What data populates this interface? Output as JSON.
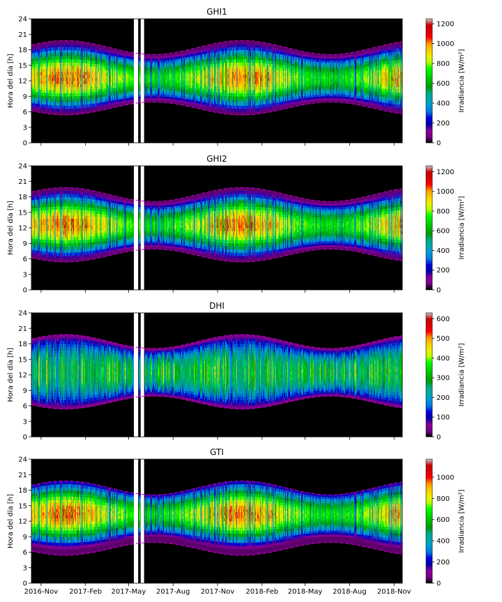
{
  "chart_data": {
    "type": "heatmap",
    "x_ticks": [
      "2016-Nov",
      "2017-Feb",
      "2017-May",
      "2017-Aug",
      "2017-Nov",
      "2018-Feb",
      "2018-May",
      "2018-Aug",
      "2018-Nov"
    ],
    "x_range": [
      "2016-10-12",
      "2018-11-18"
    ],
    "ylabel": "Hora del día [h]",
    "ylim": [
      0,
      24
    ],
    "y_ticks": [
      0,
      3,
      6,
      9,
      12,
      15,
      18,
      21,
      24
    ],
    "colormap": "nipy_spectral",
    "colorbar_label": "Irradiancia [W/m$^2$]",
    "colorbar_label_text": "Irradiancia [W/m²]",
    "daylight_envelope": {
      "line_color": "#cc00cc",
      "line_style": "dashed",
      "sunrise_range_h": [
        5.4,
        7.9
      ],
      "sunset_range_h": [
        17.1,
        19.8
      ]
    },
    "data_gaps_approx": [
      "2017-05-12 to 2017-05-20",
      "2017-05-26 to 2017-06-01"
    ],
    "panels": [
      {
        "title": "GHI1",
        "cbar_max": 1250,
        "cbar_ticks": [
          0,
          200,
          400,
          600,
          800,
          1000,
          1200
        ],
        "peak_value": 1200
      },
      {
        "title": "GHI2",
        "cbar_max": 1260,
        "cbar_ticks": [
          0,
          200,
          400,
          600,
          800,
          1000,
          1200
        ],
        "peak_value": 1200
      },
      {
        "title": "DHI",
        "cbar_max": 630,
        "cbar_ticks": [
          0,
          100,
          200,
          300,
          400,
          500,
          600
        ],
        "peak_value": 550
      },
      {
        "title": "GTI",
        "cbar_max": 1170,
        "cbar_ticks": [
          0,
          200,
          400,
          600,
          800,
          1000
        ],
        "peak_value": 1100
      }
    ]
  }
}
